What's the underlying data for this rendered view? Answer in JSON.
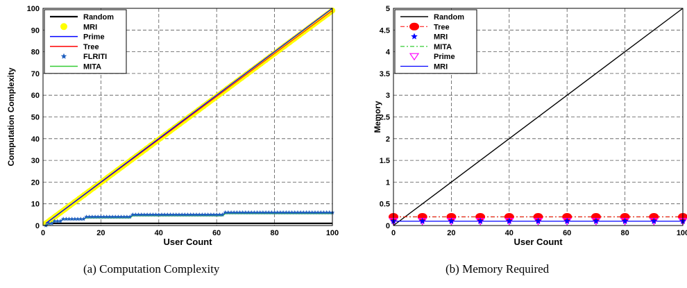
{
  "chart_data": [
    {
      "type": "line",
      "xlabel": "User Count",
      "ylabel": "Computation Complexity",
      "xlim": [
        0,
        100
      ],
      "ylim": [
        0,
        100
      ],
      "x_ticks": [
        "0",
        "20",
        "40",
        "60",
        "80",
        "100"
      ],
      "y_ticks": [
        "0",
        "10",
        "20",
        "30",
        "40",
        "50",
        "60",
        "70",
        "80",
        "90",
        "100"
      ],
      "grid": true,
      "legend_position": "top-left",
      "legend": [
        "Random",
        "MRI",
        "Prime",
        "Tree",
        "FLRITI",
        "MITA"
      ],
      "series": [
        {
          "name": "Random",
          "color": "#000000",
          "x": [
            0,
            100
          ],
          "y": [
            1,
            1
          ]
        },
        {
          "name": "MRI",
          "color": "#ffff00",
          "x": [
            1,
            100
          ],
          "y": [
            1,
            99
          ]
        },
        {
          "name": "Prime",
          "color": "#0000ff",
          "x": [
            1,
            100
          ],
          "y": [
            1,
            100
          ]
        },
        {
          "name": "Tree",
          "color": "#ff0000",
          "x": [
            1,
            100
          ],
          "y": [
            1,
            99
          ]
        },
        {
          "name": "FLRITI",
          "color": "#1f5fbf",
          "x": [
            1,
            2,
            3,
            4,
            6,
            7,
            14,
            15,
            30,
            31,
            62,
            63,
            100
          ],
          "y": [
            0,
            1,
            1,
            2,
            2,
            3,
            3,
            4,
            4,
            5,
            5,
            6,
            6
          ]
        },
        {
          "name": "MITA",
          "color": "#33cc33",
          "x": [
            1,
            2,
            3,
            4,
            6,
            7,
            14,
            15,
            30,
            31,
            62,
            63,
            100
          ],
          "y": [
            0,
            1,
            1,
            2,
            2,
            3,
            3,
            3.5,
            3.5,
            4.5,
            4.5,
            5.5,
            5.5
          ]
        }
      ],
      "caption": "(a)  Computation Complexity"
    },
    {
      "type": "line",
      "xlabel": "User Count",
      "ylabel": "Memory",
      "xlim": [
        0,
        100
      ],
      "ylim": [
        0,
        5
      ],
      "x_ticks": [
        "0",
        "20",
        "40",
        "60",
        "80",
        "100"
      ],
      "y_ticks": [
        "0",
        "0.5",
        "1",
        "1.5",
        "2",
        "2.5",
        "3",
        "3.5",
        "4",
        "4.5",
        "5"
      ],
      "grid": true,
      "legend_position": "top-left",
      "legend": [
        "Random",
        "Tree",
        "MRI",
        "MITA",
        "Prime",
        "MRI"
      ],
      "series": [
        {
          "name": "Random",
          "color": "#000000",
          "x": [
            0,
            100
          ],
          "y": [
            0,
            5
          ]
        },
        {
          "name": "Tree",
          "color": "#ff0000",
          "x": [
            0,
            10,
            20,
            30,
            40,
            50,
            60,
            70,
            80,
            90,
            100
          ],
          "y": [
            0.2,
            0.2,
            0.2,
            0.2,
            0.2,
            0.2,
            0.2,
            0.2,
            0.2,
            0.2,
            0.2
          ]
        },
        {
          "name": "MRI",
          "color": "#0000ff",
          "x": [
            0,
            10,
            20,
            30,
            40,
            50,
            60,
            70,
            80,
            90,
            100
          ],
          "y": [
            0.1,
            0.1,
            0.1,
            0.1,
            0.1,
            0.1,
            0.1,
            0.1,
            0.1,
            0.1,
            0.1
          ]
        },
        {
          "name": "MITA",
          "color": "#33cc33",
          "x": [
            0,
            100
          ],
          "y": [
            0.2,
            0.2
          ]
        },
        {
          "name": "Prime",
          "color": "#ff00ff",
          "x": [
            0,
            10,
            20,
            30,
            40,
            50,
            60,
            70,
            80,
            90,
            100
          ],
          "y": [
            0.1,
            0.1,
            0.1,
            0.1,
            0.1,
            0.1,
            0.1,
            0.1,
            0.1,
            0.1,
            0.1
          ]
        },
        {
          "name": "MRI",
          "color": "#0000ff",
          "x": [
            0,
            100
          ],
          "y": [
            0.1,
            0.1
          ]
        }
      ],
      "caption": "(b)  Memory Required"
    }
  ]
}
